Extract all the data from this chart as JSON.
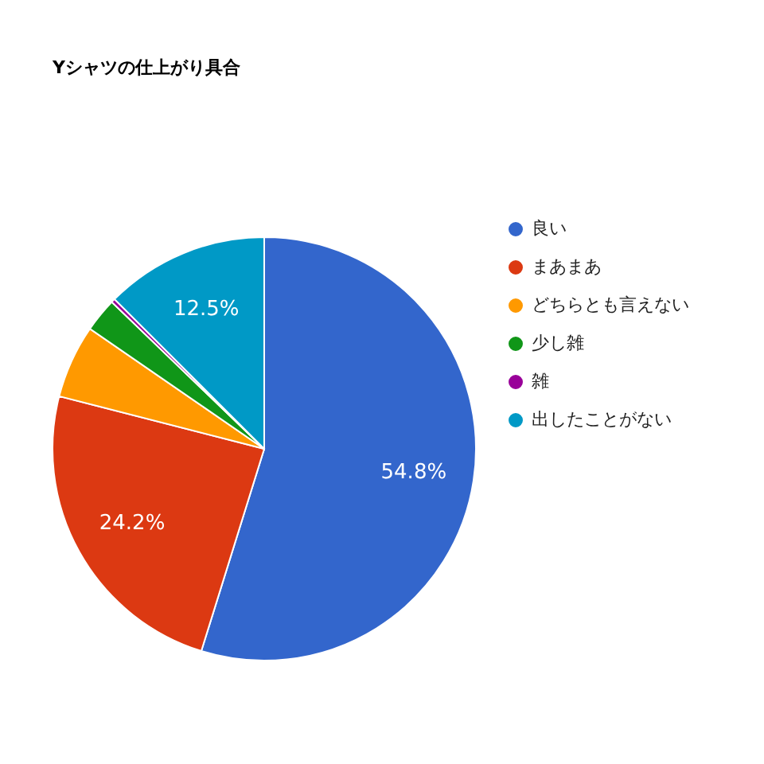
{
  "chart_data": {
    "type": "pie",
    "title": "Yシャツの仕上がり具合",
    "categories": [
      "良い",
      "まあまあ",
      "どちらとも言えない",
      "少し雑",
      "雑",
      "出したことがない"
    ],
    "values": [
      54.8,
      24.2,
      5.6,
      2.6,
      0.3,
      12.5
    ],
    "colors": [
      "#3366cc",
      "#dc3912",
      "#ff9900",
      "#109618",
      "#990099",
      "#0099c6"
    ],
    "value_labels": [
      "54.8%",
      "24.2%",
      null,
      null,
      null,
      "12.5%"
    ],
    "legend": "top right"
  }
}
